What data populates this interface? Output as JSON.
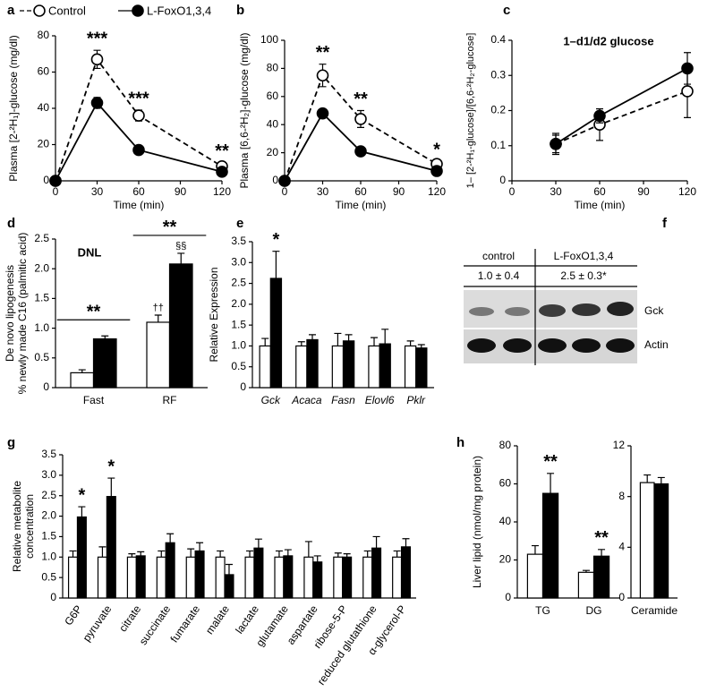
{
  "chart_data": [
    {
      "type": "line",
      "panel": "a",
      "ylabel": "Plasma [2-²H₁]-glucose (mg/dl)",
      "xlabel": "Time (min)",
      "x": [
        0,
        30,
        60,
        120
      ],
      "xlim": [
        0,
        120
      ],
      "xticks": [
        0,
        30,
        60,
        90,
        120
      ],
      "ylim": [
        0,
        80
      ],
      "yticks": [
        0,
        20,
        40,
        60,
        80
      ],
      "legend": "top-left",
      "series": [
        {
          "name": "Control",
          "color": "#000000",
          "fill": "#ffffff",
          "dashed": true,
          "values": [
            0,
            67,
            36,
            8
          ],
          "errors": [
            0,
            5,
            3,
            2
          ]
        },
        {
          "name": "L-FoxO1,3,4",
          "color": "#000000",
          "fill": "#000000",
          "dashed": false,
          "values": [
            0,
            43,
            17,
            5
          ],
          "errors": [
            0,
            3,
            1.5,
            1
          ]
        }
      ],
      "annotations": [
        "***",
        "***",
        "**"
      ]
    },
    {
      "type": "line",
      "panel": "b",
      "ylabel": "Plasma [6,6-²H₂]-glucose (mg/dl)",
      "xlabel": "Time (min)",
      "x": [
        0,
        30,
        60,
        120
      ],
      "xlim": [
        0,
        120
      ],
      "xticks": [
        0,
        30,
        60,
        90,
        120
      ],
      "ylim": [
        0,
        100
      ],
      "yticks": [
        0,
        20,
        40,
        60,
        80,
        100
      ],
      "series": [
        {
          "color": "#000000",
          "fill": "#ffffff",
          "dashed": true,
          "values": [
            0,
            75,
            44,
            12
          ],
          "errors": [
            0,
            8,
            6,
            2
          ]
        },
        {
          "color": "#000000",
          "fill": "#000000",
          "dashed": false,
          "values": [
            0,
            48,
            21,
            7
          ],
          "errors": [
            0,
            3,
            1.5,
            1
          ]
        }
      ],
      "annotations": [
        "**",
        "**",
        "*"
      ]
    },
    {
      "type": "line",
      "panel": "c",
      "title": "1–d1/d2 glucose",
      "ylabel": "1– [2-²H₁-glucose]/[6,6-²H₂-glucose]",
      "xlabel": "Time (min)",
      "x": [
        30,
        60,
        120
      ],
      "xlim": [
        0,
        120
      ],
      "xticks": [
        0,
        30,
        60,
        90,
        120
      ],
      "ylim": [
        0,
        0.4
      ],
      "yticks": [
        0,
        0.1,
        0.2,
        0.3,
        0.4
      ],
      "series": [
        {
          "color": "#000000",
          "fill": "#ffffff",
          "dashed": true,
          "values": [
            0.105,
            0.16,
            0.255
          ],
          "errors": [
            0.025,
            0.045,
            0.075
          ]
        },
        {
          "color": "#000000",
          "fill": "#000000",
          "dashed": false,
          "values": [
            0.105,
            0.185,
            0.32
          ],
          "errors": [
            0.03,
            0.02,
            0.045
          ]
        }
      ]
    },
    {
      "type": "bar",
      "panel": "d",
      "title": "DNL",
      "ylabel": [
        "De novo lipogenesis",
        "% newly made C16 (palmitic acid)"
      ],
      "categories": [
        "Fast",
        "RF"
      ],
      "ylim": [
        0,
        2.5
      ],
      "yticks": [
        0,
        0.5,
        {
          "value": 1,
          "label": "1.0"
        },
        1.5,
        {
          "value": 2,
          "label": "2.0"
        },
        2.5
      ],
      "series": [
        {
          "color": "#ffffff",
          "values": [
            0.25,
            1.1
          ],
          "errors": [
            0.05,
            0.12
          ]
        },
        {
          "color": "#000000",
          "values": [
            0.82,
            2.08
          ],
          "errors": [
            0.05,
            0.18
          ]
        }
      ],
      "annotations": [
        "**",
        "**",
        "††",
        "§§"
      ]
    },
    {
      "type": "bar",
      "panel": "e",
      "ylabel": "Relative Expression",
      "italic_categories": true,
      "categories": [
        "Gck",
        "Acaca",
        "Fasn",
        "Elovl6",
        "Pklr"
      ],
      "ylim": [
        0,
        3.5
      ],
      "yticks": [
        0,
        0.5,
        {
          "value": 1,
          "label": "1.0"
        },
        1.5,
        {
          "value": 2,
          "label": "2.0"
        },
        2.5,
        {
          "value": 3,
          "label": "3.0"
        },
        3.5
      ],
      "series": [
        {
          "color": "#ffffff",
          "values": [
            1,
            1,
            1,
            1,
            1
          ],
          "errors": [
            0.18,
            0.1,
            0.3,
            0.2,
            0.12
          ]
        },
        {
          "color": "#000000",
          "values": [
            2.62,
            1.15,
            1.12,
            1.05,
            0.95
          ],
          "errors": [
            0.65,
            0.12,
            0.15,
            0.35,
            0.08
          ]
        }
      ],
      "annotations": [
        "*"
      ]
    },
    {
      "type": "bar",
      "panel": "g",
      "ylabel": [
        "Relative metabolite",
        "concentration"
      ],
      "rotate_labels": true,
      "categories": [
        "G6P",
        "pyruvate",
        "citrate",
        "succinate",
        "fumarate",
        "malate",
        "lactate",
        "glutamate",
        "aspartate",
        "ribose-5-P",
        "reduced glutathione",
        "α-glycerol-P"
      ],
      "ylim": [
        0,
        3.5
      ],
      "yticks": [
        0,
        0.5,
        {
          "value": 1,
          "label": "1.0"
        },
        1.5,
        {
          "value": 2,
          "label": "2.0"
        },
        2.5,
        {
          "value": 3,
          "label": "3.0"
        },
        3.5
      ],
      "series": [
        {
          "color": "#ffffff",
          "values": [
            1,
            1,
            1,
            1,
            1,
            1,
            1,
            1,
            1,
            1,
            1,
            1
          ],
          "errors": [
            0.15,
            0.25,
            0.08,
            0.15,
            0.2,
            0.15,
            0.15,
            0.15,
            0.38,
            0.1,
            0.15,
            0.15
          ]
        },
        {
          "color": "#000000",
          "values": [
            1.98,
            2.48,
            1.03,
            1.35,
            1.15,
            0.57,
            1.22,
            1.03,
            0.88,
            1.0,
            1.22,
            1.25
          ],
          "errors": [
            0.25,
            0.45,
            0.1,
            0.22,
            0.2,
            0.25,
            0.22,
            0.15,
            0.15,
            0.08,
            0.28,
            0.2
          ]
        }
      ],
      "annotations": [
        "*",
        "*"
      ]
    },
    {
      "type": "bar",
      "panel": "h",
      "ylabel": "Liver lipid (nmol/mg protein)",
      "categories": [
        "TG",
        "DG"
      ],
      "ylim": [
        0,
        80
      ],
      "yticks": [
        0,
        20,
        40,
        60,
        80
      ],
      "series": [
        {
          "color": "#ffffff",
          "values": [
            23,
            13.5
          ],
          "errors": [
            4.5,
            1
          ]
        },
        {
          "color": "#000000",
          "values": [
            55,
            22
          ],
          "errors": [
            10.5,
            3.5
          ]
        }
      ],
      "annotations": [
        "**",
        "**"
      ]
    },
    {
      "type": "bar",
      "categories": [
        "Ceramide"
      ],
      "ylim": [
        0,
        12
      ],
      "yticks": [
        0,
        4,
        8,
        12
      ],
      "series": [
        {
          "color": "#ffffff",
          "values": [
            9.1
          ],
          "errors": [
            0.6
          ]
        },
        {
          "color": "#000000",
          "values": [
            9.0
          ],
          "errors": [
            0.5
          ]
        }
      ]
    }
  ],
  "blot": {
    "panel": "f",
    "groups": [
      "control",
      "L-FoxO1,3,4"
    ],
    "quant": [
      "1.0 ± 0.4",
      "2.5 ± 0.3*"
    ],
    "rows": [
      "Gck",
      "Actin"
    ]
  }
}
